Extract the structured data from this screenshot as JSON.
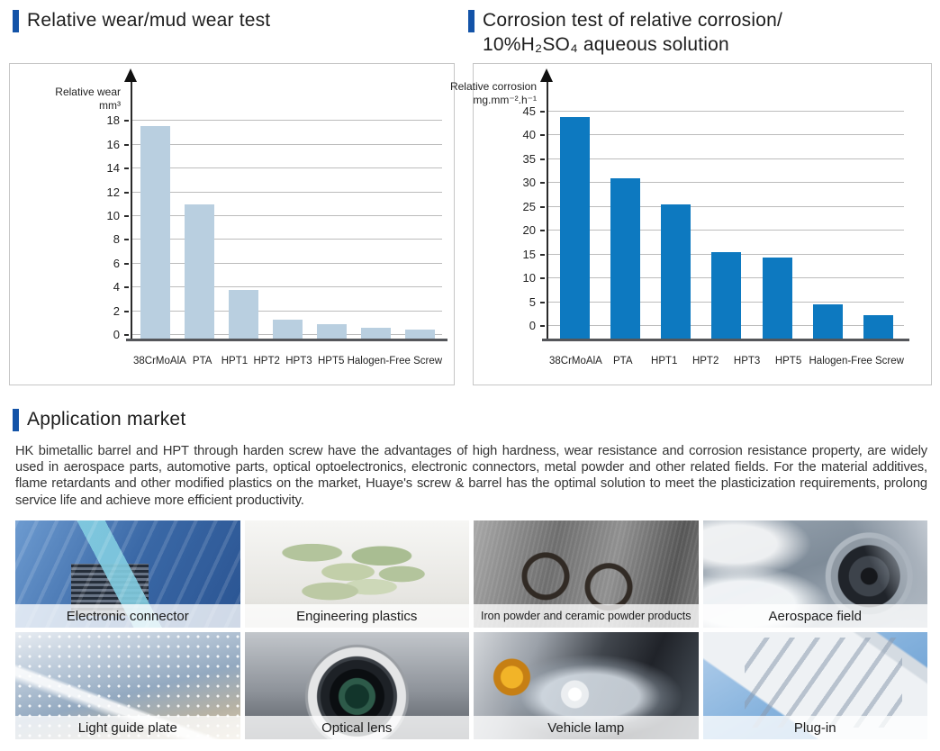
{
  "accent_color": "#1353a8",
  "sections": {
    "wear": {
      "title": "Relative wear/mud wear test"
    },
    "corrosion": {
      "title_line1": "Corrosion test of relative corrosion/",
      "title_line2": "10%H₂SO₄ aqueous solution"
    },
    "application": {
      "title": "Application market",
      "paragraph": "HK bimetallic barrel and HPT through harden screw have the advantages of high hardness, wear resistance and corrosion resistance property, are widely used in aerospace parts, automotive parts, optical optoelectronics, electronic connectors, metal powder and other related fields. For the material additives, flame retardants and other modified plastics on the market, Huaye's screw & barrel has the optimal solution to meet the plasticization requirements, prolong service life and achieve more efficient productivity."
    }
  },
  "chart_data": [
    {
      "type": "bar",
      "title": "Relative wear/mud wear test",
      "ylabel_line1": "Relative wear",
      "ylabel_line2": "mm³",
      "categories": [
        "38CrMoAlA",
        "PTA",
        "HPT1",
        "HPT2",
        "HPT3",
        "HPT5",
        "Halogen-Free Screw"
      ],
      "values": [
        17.6,
        11,
        3.8,
        1.3,
        0.9,
        0.6,
        0.45
      ],
      "ylim": [
        0,
        18
      ],
      "ytick_step": 2,
      "bar_color": "#b9cfe0",
      "grid": true,
      "legend": "none"
    },
    {
      "type": "bar",
      "title": "Corrosion test of relative corrosion/10%H₂SO₄ aqueous solution",
      "ylabel_line1": "Relative corrosion",
      "ylabel_line2": "mg.mm⁻².h⁻¹",
      "categories": [
        "38CrMoAlA",
        "PTA",
        "HPT1",
        "HPT2",
        "HPT3",
        "HPT5",
        "Halogen-Free Screw"
      ],
      "values": [
        43.8,
        31,
        25.5,
        15.4,
        14.3,
        4.5,
        2.2
      ],
      "ylim": [
        0,
        45
      ],
      "ytick_step": 5,
      "bar_color": "#0d79c0",
      "grid": true,
      "legend": "none"
    }
  ],
  "gallery": {
    "items": [
      {
        "caption": "Electronic connector"
      },
      {
        "caption": "Engineering plastics"
      },
      {
        "caption": "Iron powder and ceramic powder products"
      },
      {
        "caption": "Aerospace field"
      },
      {
        "caption": "Light guide plate"
      },
      {
        "caption": "Optical lens"
      },
      {
        "caption": "Vehicle lamp"
      },
      {
        "caption": "Plug-in"
      }
    ]
  }
}
